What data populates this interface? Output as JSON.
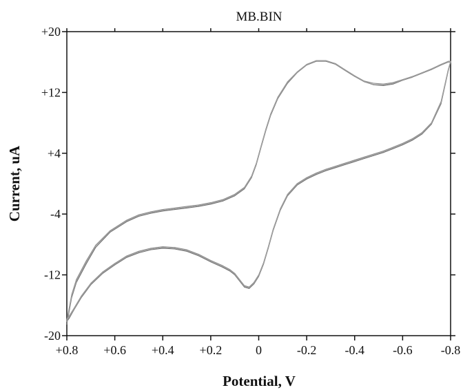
{
  "chart_data": {
    "type": "line",
    "title": "MB.BIN",
    "xlabel": "Potential, V",
    "ylabel": "Current, uA",
    "x_reversed": true,
    "xlim": [
      0.8,
      -0.8
    ],
    "ylim": [
      -20,
      20
    ],
    "x_ticks": [
      0.8,
      0.6,
      0.4,
      0.2,
      0,
      -0.2,
      -0.4,
      -0.6,
      -0.8
    ],
    "x_tick_labels": [
      "+0.8",
      "+0.6",
      "+0.4",
      "+0.2",
      "0",
      "-0.2",
      "-0.4",
      "-0.6",
      "-0.8"
    ],
    "y_ticks": [
      20,
      12,
      4,
      -4,
      -12,
      -20
    ],
    "y_tick_labels": [
      "+20",
      "+12",
      "+4",
      "-4",
      "-12",
      "-20"
    ],
    "grid": false,
    "series": [
      {
        "color": "#6e6e6e",
        "x": [
          0.8,
          0.78,
          0.76,
          0.72,
          0.68,
          0.62,
          0.55,
          0.5,
          0.45,
          0.4,
          0.35,
          0.3,
          0.25,
          0.2,
          0.15,
          0.1,
          0.06,
          0.03,
          0.01,
          -0.01,
          -0.03,
          -0.05,
          -0.08,
          -0.12,
          -0.16,
          -0.2,
          -0.24,
          -0.28,
          -0.32,
          -0.36,
          -0.4,
          -0.44,
          -0.48,
          -0.52,
          -0.56,
          -0.6,
          -0.64,
          -0.68,
          -0.72,
          -0.76,
          -0.79,
          -0.8,
          -0.79,
          -0.76,
          -0.72,
          -0.68,
          -0.64,
          -0.6,
          -0.56,
          -0.52,
          -0.48,
          -0.44,
          -0.4,
          -0.36,
          -0.32,
          -0.28,
          -0.24,
          -0.2,
          -0.16,
          -0.12,
          -0.09,
          -0.06,
          -0.04,
          -0.02,
          0.0,
          0.02,
          0.04,
          0.06,
          0.08,
          0.1,
          0.12,
          0.15,
          0.2,
          0.25,
          0.3,
          0.35,
          0.4,
          0.45,
          0.5,
          0.55,
          0.6,
          0.65,
          0.7,
          0.74,
          0.77,
          0.79,
          0.8
        ],
        "y": [
          -18.5,
          -15.0,
          -13.0,
          -10.6,
          -8.4,
          -6.4,
          -5.0,
          -4.3,
          -3.9,
          -3.6,
          -3.4,
          -3.2,
          -3.0,
          -2.7,
          -2.3,
          -1.6,
          -0.7,
          0.8,
          2.5,
          4.8,
          7.0,
          9.0,
          11.2,
          13.2,
          14.6,
          15.6,
          16.1,
          16.1,
          15.7,
          14.9,
          14.1,
          13.4,
          13.0,
          12.9,
          13.1,
          13.6,
          14.0,
          14.5,
          15.0,
          15.6,
          16.0,
          16.0,
          14.8,
          10.5,
          7.8,
          6.5,
          5.7,
          5.1,
          4.6,
          4.1,
          3.7,
          3.3,
          2.9,
          2.5,
          2.1,
          1.7,
          1.2,
          0.6,
          -0.2,
          -1.6,
          -3.5,
          -6.2,
          -8.5,
          -10.6,
          -12.2,
          -13.2,
          -13.8,
          -13.6,
          -12.8,
          -12.0,
          -11.5,
          -11.0,
          -10.3,
          -9.5,
          -8.9,
          -8.6,
          -8.5,
          -8.7,
          -9.1,
          -9.7,
          -10.7,
          -11.8,
          -13.3,
          -15.0,
          -16.6,
          -17.7,
          -18.1
        ]
      },
      {
        "color": "#8a8a8a",
        "x": [
          0.8,
          0.78,
          0.76,
          0.72,
          0.68,
          0.62,
          0.55,
          0.5,
          0.45,
          0.4,
          0.35,
          0.3,
          0.25,
          0.2,
          0.15,
          0.1,
          0.06,
          0.03,
          0.01,
          -0.01,
          -0.03,
          -0.05,
          -0.08,
          -0.12,
          -0.16,
          -0.2,
          -0.24,
          -0.28,
          -0.32,
          -0.36,
          -0.4,
          -0.44,
          -0.48,
          -0.52,
          -0.56,
          -0.6,
          -0.64,
          -0.68,
          -0.72,
          -0.76,
          -0.79,
          -0.8,
          -0.79,
          -0.76,
          -0.72,
          -0.68,
          -0.64,
          -0.6,
          -0.56,
          -0.52,
          -0.48,
          -0.44,
          -0.4,
          -0.36,
          -0.32,
          -0.28,
          -0.24,
          -0.2,
          -0.16,
          -0.12,
          -0.09,
          -0.06,
          -0.04,
          -0.02,
          0.0,
          0.02,
          0.04,
          0.06,
          0.08,
          0.1,
          0.12,
          0.15,
          0.2,
          0.25,
          0.3,
          0.35,
          0.4,
          0.45,
          0.5,
          0.55,
          0.6,
          0.65,
          0.7,
          0.74,
          0.77,
          0.79,
          0.8
        ],
        "y": [
          -18.0,
          -14.6,
          -12.6,
          -10.2,
          -8.1,
          -6.2,
          -4.8,
          -4.1,
          -3.7,
          -3.4,
          -3.2,
          -3.0,
          -2.8,
          -2.5,
          -2.1,
          -1.4,
          -0.5,
          1.0,
          2.7,
          5.0,
          7.2,
          9.2,
          11.4,
          13.4,
          14.7,
          15.7,
          16.2,
          16.2,
          15.8,
          15.0,
          14.2,
          13.5,
          13.2,
          13.1,
          13.3,
          13.7,
          14.1,
          14.6,
          15.1,
          15.7,
          16.1,
          16.1,
          15.0,
          10.8,
          8.0,
          6.7,
          5.9,
          5.3,
          4.8,
          4.3,
          3.9,
          3.5,
          3.1,
          2.7,
          2.3,
          1.9,
          1.4,
          0.8,
          0.0,
          -1.4,
          -3.3,
          -6.0,
          -8.3,
          -10.4,
          -12.0,
          -13.0,
          -13.6,
          -13.4,
          -12.6,
          -11.8,
          -11.3,
          -10.8,
          -10.1,
          -9.3,
          -8.7,
          -8.4,
          -8.3,
          -8.5,
          -8.9,
          -9.5,
          -10.5,
          -11.6,
          -13.1,
          -14.8,
          -16.4,
          -17.4,
          -17.8
        ]
      },
      {
        "color": "#a0a0a0",
        "x": [
          0.8,
          0.78,
          0.76,
          0.72,
          0.68,
          0.62,
          0.55,
          0.5,
          0.45,
          0.4,
          0.35,
          0.3,
          0.25,
          0.2,
          0.15,
          0.1,
          0.06,
          0.03,
          0.01,
          -0.01,
          -0.03,
          -0.05,
          -0.08,
          -0.12,
          -0.16,
          -0.2,
          -0.24,
          -0.28,
          -0.32,
          -0.36,
          -0.4,
          -0.44,
          -0.48,
          -0.52,
          -0.56,
          -0.6,
          -0.64,
          -0.68,
          -0.72,
          -0.76,
          -0.79,
          -0.8,
          -0.79,
          -0.76,
          -0.72,
          -0.68,
          -0.64,
          -0.6,
          -0.56,
          -0.52,
          -0.48,
          -0.44,
          -0.4,
          -0.36,
          -0.32,
          -0.28,
          -0.24,
          -0.2,
          -0.16,
          -0.12,
          -0.09,
          -0.06,
          -0.04,
          -0.02,
          0.0,
          0.02,
          0.04,
          0.06,
          0.08,
          0.1,
          0.12,
          0.15,
          0.2,
          0.25,
          0.3,
          0.35,
          0.4,
          0.45,
          0.5,
          0.55,
          0.6,
          0.65,
          0.7,
          0.74,
          0.77,
          0.79,
          0.8
        ],
        "y": [
          -18.2,
          -14.8,
          -12.8,
          -10.4,
          -8.2,
          -6.3,
          -4.9,
          -4.2,
          -3.8,
          -3.5,
          -3.3,
          -3.1,
          -2.9,
          -2.6,
          -2.2,
          -1.5,
          -0.6,
          0.9,
          2.6,
          4.9,
          7.1,
          9.1,
          11.3,
          13.3,
          14.65,
          15.65,
          16.15,
          16.15,
          15.75,
          14.95,
          14.15,
          13.45,
          13.05,
          13.0,
          13.2,
          13.65,
          14.05,
          14.55,
          15.05,
          15.65,
          16.05,
          16.05,
          14.9,
          10.65,
          7.9,
          6.6,
          5.8,
          5.2,
          4.7,
          4.2,
          3.8,
          3.4,
          3.0,
          2.6,
          2.2,
          1.8,
          1.3,
          0.7,
          -0.1,
          -1.5,
          -3.4,
          -6.1,
          -8.4,
          -10.5,
          -12.1,
          -13.1,
          -13.7,
          -13.5,
          -12.7,
          -11.9,
          -11.4,
          -10.9,
          -10.2,
          -9.4,
          -8.8,
          -8.5,
          -8.4,
          -8.6,
          -9.0,
          -9.6,
          -10.6,
          -11.7,
          -13.2,
          -14.9,
          -16.5,
          -17.55,
          -17.95
        ]
      }
    ]
  }
}
